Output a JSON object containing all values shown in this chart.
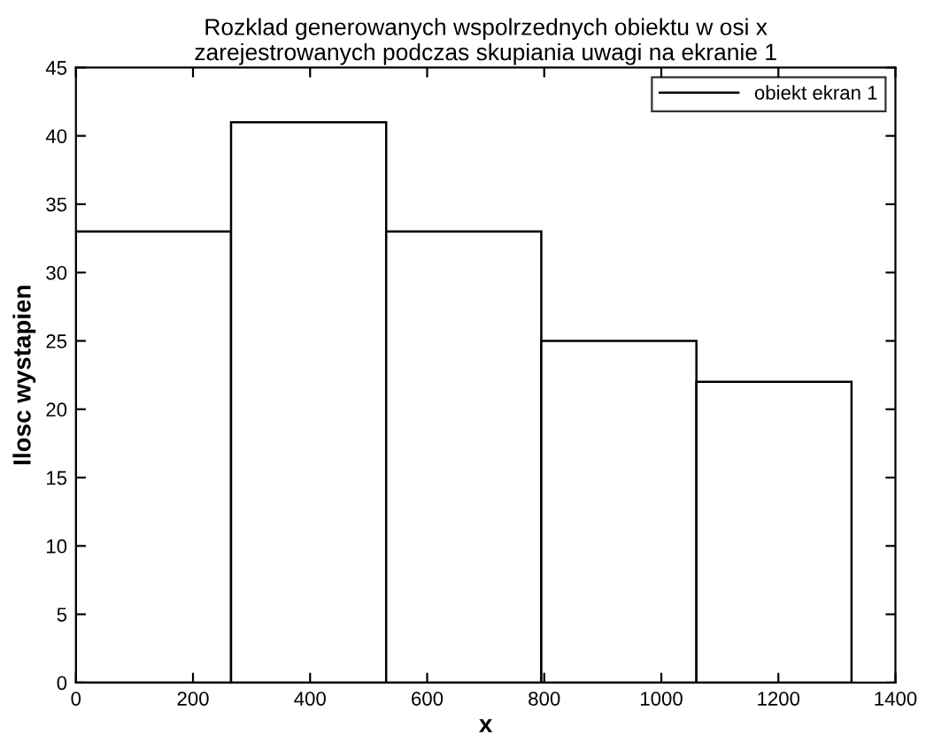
{
  "chart_data": {
    "type": "histogram",
    "title": "Rozklad generowanych wspolrzednych obiektu w osi x\nzarejestrowanych podczas skupiania uwagi na ekranie 1",
    "xlabel": "x",
    "ylabel": "Ilosc wystapien",
    "bins": [
      0,
      265,
      530,
      795,
      1060,
      1325
    ],
    "series": [
      {
        "name": "obiekt ekran 1",
        "color": "#000000",
        "values": [
          33,
          41,
          33,
          25,
          22
        ]
      }
    ],
    "xlim": [
      0,
      1400
    ],
    "xticks": [
      0,
      200,
      400,
      600,
      800,
      1000,
      1200,
      1400
    ],
    "ylim": [
      0,
      45
    ],
    "yticks": [
      0,
      5,
      10,
      15,
      20,
      25,
      30,
      35,
      40,
      45
    ],
    "grid": false,
    "legend": "top right"
  }
}
